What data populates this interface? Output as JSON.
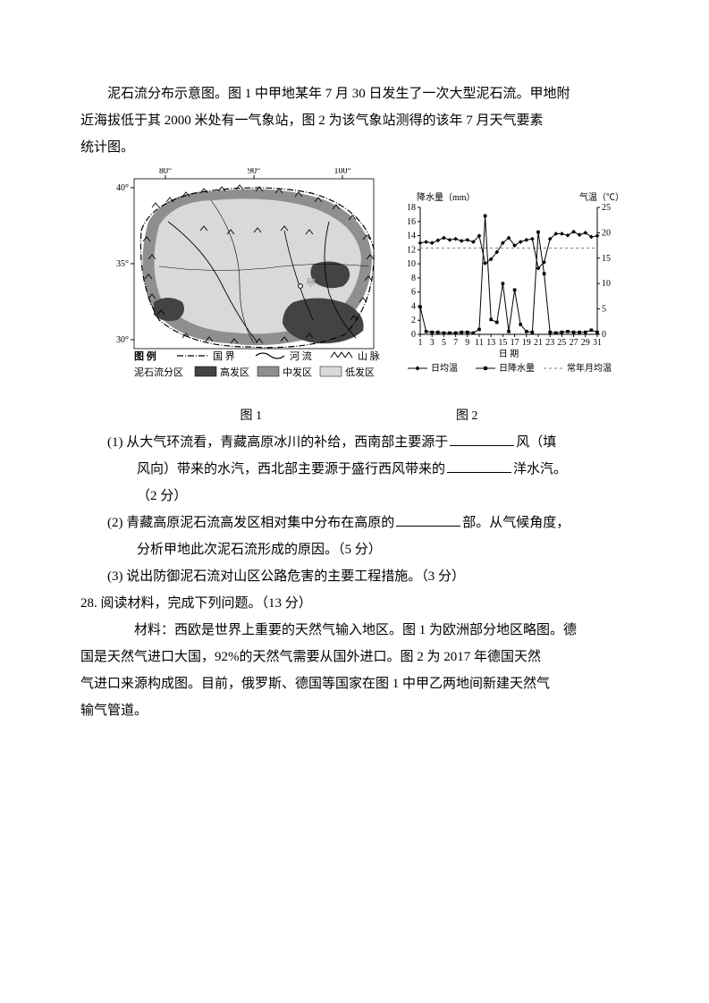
{
  "intro": {
    "l1": "泥石流分布示意图。图 1 中甲地某年 7 月 30 日发生了一次大型泥石流。甲地附",
    "l2": "近海拔低于其 2000 米处有一气象站，图 2 为该气象站测得的该年 7 月天气要素",
    "l3": "统计图。"
  },
  "fig1": {
    "label": "图 1",
    "lons": [
      "80°",
      "90°",
      "100°"
    ],
    "lats": [
      "40°",
      "35°",
      "30°"
    ],
    "markerLabel": "甲",
    "legend": {
      "title": "图  例",
      "border": "国  界",
      "river": "河  流",
      "mtn": "山  脉",
      "zone": "泥石流分区",
      "high": "高发区",
      "mid": "中发区",
      "low": "低发区"
    },
    "colors": {
      "bg": "#ffffff",
      "high": "#434343",
      "mid": "#8f8f8f",
      "low": "#d9d9d9",
      "line": "#000000"
    }
  },
  "fig2": {
    "label": "图 2",
    "yLeftLabel": "降水量（mm）",
    "yRightLabel": "气温（℃）",
    "xLabel": "日  期",
    "legendTemp": "日均温",
    "legendPrecip": "日降水量",
    "legendAvg": "常年月均温",
    "yLeft": {
      "min": 0,
      "max": 18,
      "step": 2,
      "ticks": [
        0,
        2,
        4,
        6,
        8,
        10,
        12,
        14,
        16,
        18
      ]
    },
    "yRight": {
      "min": 0,
      "max": 25,
      "step": 5,
      "ticks": [
        0,
        5,
        10,
        15,
        20,
        25
      ]
    },
    "xTicks": [
      1,
      3,
      5,
      7,
      9,
      11,
      13,
      15,
      17,
      19,
      21,
      23,
      25,
      27,
      29,
      31
    ],
    "monthlyAvgTemp": 17,
    "dailyTemp": [
      18,
      18.2,
      18,
      18.5,
      19,
      18.6,
      18.8,
      18.4,
      18.6,
      18.2,
      19.4,
      14,
      14.8,
      16.2,
      18,
      19,
      17.5,
      18.2,
      18.6,
      18.8,
      13,
      14.2,
      18.8,
      19.8,
      19.8,
      19.5,
      20.2,
      19.6,
      20,
      19.2,
      19.4
    ],
    "dailyPrecip": [
      3.9,
      0.4,
      0.3,
      0.3,
      0.2,
      0.2,
      0.2,
      0.3,
      0.3,
      0.2,
      0.7,
      16.8,
      2.1,
      1.7,
      7.2,
      0.4,
      6.3,
      1.4,
      0.4,
      0.3,
      14.5,
      8.6,
      0.3,
      0.2,
      0.3,
      0.4,
      0.3,
      0.3,
      0.3,
      0.6,
      0.3
    ],
    "colors": {
      "temp": "#000000",
      "precip": "#000000",
      "avg": "#808080",
      "grid": "#000000",
      "bg": "#ffffff"
    }
  },
  "questions": {
    "q1a": "(1)  从大气环流看，青藏高原冰川的补给，西南部主要源于",
    "q1b": "风（填",
    "q1c": "风向）带来的水汽，西北部主要源于盛行西风带来的",
    "q1d": "洋水汽。",
    "q1e": "（2 分）",
    "q2a": "(2)  青藏高原泥石流高发区相对集中分布在高原的",
    "q2b": "部。从气候角度，",
    "q2c": "分析甲地此次泥石流形成的原因。（5 分）",
    "q3": "(3)  说出防御泥石流对山区公路危害的主要工程措施。（3 分）"
  },
  "q28": {
    "head": "28.  阅读材料，完成下列问题。（13 分）",
    "m1": "材料：西欧是世界上重要的天然气输入地区。图 1 为欧洲部分地区略图。德",
    "m2": "国是天然气进口大国，92%的天然气需要从国外进口。图 2 为 2017 年德国天然",
    "m3": "气进口来源构成图。目前，俄罗斯、德国等国家在图 1 中甲乙两地间新建天然气",
    "m4": "输气管道。"
  }
}
